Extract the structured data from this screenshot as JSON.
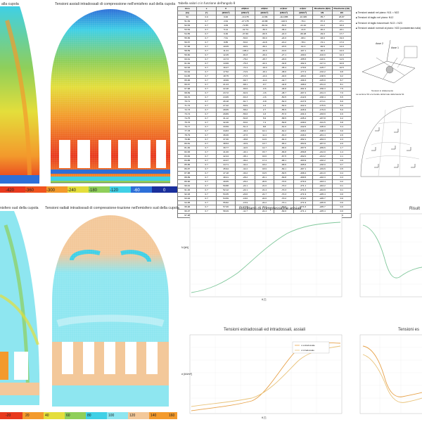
{
  "panels": {
    "tl_title": "alla cupola",
    "tm_title": "Tensioni assiali intradossali di compressione nell'emisfero sud della cupola",
    "bl_title": "nisfero sud della cupola",
    "bm_title": "Tensioni radiali intradossali di compressione-trazione nell'emisfero sud della cupola",
    "graph1_title": "Risultanti di compressione assiali",
    "graph2_title": "Risult",
    "graph3_title": "Tensioni estradossali ed intradossali, assiali",
    "graph4_title": "Tensioni es"
  },
  "legend_top": [
    "-420",
    "-360",
    "-300",
    "-240",
    "-180",
    "-120",
    "-60",
    "0"
  ],
  "legend_bottom_left": [
    "-20"
  ],
  "legend_bottom": [
    "20",
    "40",
    "60",
    "80",
    "100",
    "120",
    "140",
    "160"
  ],
  "table": {
    "title": "Tabella valori σ in funzione dell'angolo θ",
    "headers": [
      "Arco",
      "x",
      "θ",
      "σθ|Estr",
      "σθ|Intr",
      "σr|Estr",
      "σr|Intr",
      "Risultante (θ|Ω)",
      "Risultante (r|Ω)"
    ],
    "units": [
      "[m]",
      "[°]",
      "[kN/m²]",
      "[kN/m²]",
      "[kN/m²]",
      "[kN/m²]",
      "[kN/m²]",
      "kN",
      "kN"
    ],
    "rows": [
      [
        "50",
        "0.0",
        "0.00",
        "-13.475",
        "-13.86",
        "-114.885",
        "-10.495",
        "-55.7",
        "26.87"
      ],
      [
        "51-52",
        "0.7",
        "2.64",
        "-27.175",
        "-16.88",
        "-110.6",
        "-76.1",
        "-57.3",
        "27.1"
      ],
      [
        "52-53",
        "0.7",
        "4.09",
        "-72.85",
        "-69.31",
        "-53.6",
        "-21.10",
        "-41.2",
        "16.0"
      ],
      [
        "53-54",
        "0.7",
        "5.14",
        "-42.74",
        "-39.3",
        "-36.2",
        "-41.6",
        "-40.2",
        "22.1"
      ],
      [
        "54-55",
        "0.7",
        "6.36",
        "-37.60",
        "-60.5",
        "-22.3",
        "-66.48",
        "-49.0",
        "17.7"
      ],
      [
        "55-56",
        "0.7",
        "7.61",
        "-50.0",
        "-50.0",
        "-24.0",
        "-68.1",
        "-63.0",
        "19.0"
      ],
      [
        "56-57",
        "0.7",
        "8.85",
        "-53.0",
        "-44.8",
        "-16.2",
        "-78.1",
        "-72.1",
        "17.0"
      ],
      [
        "57-58",
        "0.7",
        "10.05",
        "-99.9",
        "-39.1",
        "-15.5",
        "-91.3",
        "-84.6",
        "14.0"
      ],
      [
        "58-59",
        "0.7",
        "11.24",
        "-106.2",
        "-33.3",
        "-19.0",
        "-107.1",
        "-92.0",
        "12.0"
      ],
      [
        "59-60",
        "0.7",
        "12.45",
        "-81.8",
        "-29.4",
        "-27.1",
        "-160.0",
        "-102.0",
        "12.3"
      ],
      [
        "60-61",
        "0.7",
        "13.73",
        "-78.2",
        "-25.7",
        "-29.9",
        "-155.5",
        "-110.1",
        "11.6"
      ],
      [
        "61-62",
        "0.7",
        "14.99",
        "-76.3",
        "-22.1",
        "-32.8",
        "-162.4",
        "-117.4",
        "10.8"
      ],
      [
        "62-63",
        "0.7",
        "16.27",
        "-74.4",
        "-19.0",
        "-35.4",
        "-170.6",
        "-125.7",
        "10.5"
      ],
      [
        "63-64",
        "0.7",
        "17.52",
        "-72.9",
        "-16.1",
        "-38.0",
        "-177.2",
        "-132.2",
        "9.8"
      ],
      [
        "64-65",
        "0.7",
        "18.75",
        "-71.5",
        "-13.4",
        "-40.6",
        "-184.0",
        "-138.6",
        "9.2"
      ],
      [
        "65-66",
        "0.7",
        "19.99",
        "-69.7",
        "-11.0",
        "-42.7",
        "-190.3",
        "-145.0",
        "8.7"
      ],
      [
        "66-67",
        "0.7",
        "21.23",
        "-68.1",
        "-8.7",
        "-44.8",
        "-196.0",
        "-151.0",
        "8.1"
      ],
      [
        "67-68",
        "0.7",
        "22.48",
        "-66.6",
        "-6.6",
        "-46.8",
        "-201.9",
        "-156.3",
        "7.5"
      ],
      [
        "68-69",
        "0.7",
        "23.72",
        "-64.9",
        "-4.6",
        "-48.7",
        "-207.2",
        "-161.3",
        "7.0"
      ],
      [
        "69-70",
        "0.7",
        "24.95",
        "-63.3",
        "-2.6",
        "-50.5",
        "-212.6",
        "-166.4",
        "6.5"
      ],
      [
        "70-71",
        "0.7",
        "26.18",
        "-61.7",
        "-0.8",
        "-52.3",
        "-217.6",
        "-171.1",
        "6.0"
      ],
      [
        "71-72",
        "0.7",
        "27.42",
        "-59.9",
        "1.0",
        "-54.0",
        "-222.4",
        "-175.6",
        "5.5"
      ],
      [
        "72-73",
        "0.7",
        "28.65",
        "-58.2",
        "2.7",
        "-55.5",
        "-226.9",
        "-179.9",
        "5.0"
      ],
      [
        "73-74",
        "0.7",
        "29.89",
        "-56.6",
        "4.3",
        "-57.0",
        "-231.0",
        "-183.9",
        "4.6"
      ],
      [
        "74-75",
        "0.7",
        "31.12",
        "-54.8",
        "5.9",
        "-58.5",
        "-235.2",
        "-187.8",
        "4.2"
      ],
      [
        "75-76",
        "0.7",
        "32.36",
        "-53.0",
        "7.4",
        "-59.8",
        "-239.0",
        "-191.5",
        "3.8"
      ],
      [
        "76-77",
        "0.7",
        "33.59",
        "-51.3",
        "8.8",
        "-61.0",
        "-242.6",
        "-195.0",
        "3.4"
      ],
      [
        "77-78",
        "0.7",
        "34.83",
        "-49.4",
        "10.1",
        "-62.2",
        "-246.0",
        "-198.3",
        "3.0"
      ],
      [
        "78-79",
        "0.7",
        "36.06",
        "-47.6",
        "11.4",
        "-63.3",
        "-249.2",
        "-201.4",
        "2.6"
      ],
      [
        "79-80",
        "0.7",
        "37.30",
        "-45.8",
        "12.6",
        "-64.3",
        "-252.1",
        "-204.3",
        "2.3"
      ],
      [
        "80-81",
        "0.7",
        "38.53",
        "-43.9",
        "13.7",
        "-65.2",
        "-254.9",
        "-207.0",
        "2.0"
      ],
      [
        "81-82",
        "0.7",
        "39.77",
        "-42.0",
        "14.7",
        "-66.0",
        "-257.5",
        "-209.6",
        "1.7"
      ],
      [
        "82-83",
        "0.7",
        "41.00",
        "-40.1",
        "15.7",
        "-66.8",
        "-259.8",
        "-212.0",
        "1.4"
      ],
      [
        "83-84",
        "0.7",
        "42.24",
        "-38.1",
        "16.6",
        "-67.5",
        "-262.0",
        "-214.2",
        "1.1"
      ],
      [
        "84-85",
        "0.7",
        "43.47",
        "-36.2",
        "17.4",
        "-68.1",
        "-263.9",
        "-216.2",
        "0.9"
      ],
      [
        "85-86",
        "0.7",
        "44.71",
        "-34.2",
        "18.2",
        "-68.6",
        "-265.6",
        "-218.0",
        "0.7"
      ],
      [
        "86-87",
        "0.7",
        "45.94",
        "-32.2",
        "18.9",
        "-69.1",
        "-267.1",
        "-219.6",
        "0.5"
      ],
      [
        "87-88",
        "0.7",
        "47.18",
        "-30.2",
        "19.5",
        "-69.5",
        "-268.4",
        "-221.0",
        "0.4"
      ],
      [
        "88-89",
        "0.7",
        "48.41",
        "-28.2",
        "20.1",
        "-69.8",
        "-269.5",
        "-222.3",
        "0.3"
      ],
      [
        "89-90",
        "0.7",
        "49.65",
        "-26.2",
        "20.6",
        "-70.0",
        "-270.4",
        "-223.4",
        "0.2"
      ],
      [
        "90-91",
        "0.7",
        "50.88",
        "-24.1",
        "21.0",
        "-70.2",
        "-271.1",
        "-224.2",
        "0.1"
      ],
      [
        "91-92",
        "0.7",
        "52.12",
        "-22.1",
        "21.4",
        "-70.3",
        "-271.6",
        "-224.9",
        "0.1"
      ],
      [
        "92-93",
        "0.7",
        "53.35",
        "-20.0",
        "21.7",
        "-70.3",
        "-271.9",
        "-225.4",
        "0.0"
      ],
      [
        "93-94",
        "0.7",
        "54.59",
        "-18.0",
        "22.0",
        "-70.2",
        "-272.0",
        "-225.7",
        "0.0"
      ],
      [
        "94-95",
        "0.7",
        "55.82",
        "-15.9",
        "22.2",
        "-70.1",
        "-271.9",
        "-225.8",
        "0.0"
      ],
      [
        "95-96",
        "0.7",
        "57.06",
        "-13.8",
        "22.3",
        "-69.9",
        "-271.6",
        "-225.7",
        "0.0"
      ],
      [
        "96-97",
        "0.7",
        "58.29",
        "-11.7",
        "22.4",
        "-69.6",
        "-271.1",
        "-225.4",
        "0.0"
      ],
      [
        "97-98",
        "0.7",
        "59.53",
        "-9.6",
        "22.4",
        "-69.3",
        "-270.4",
        "-224.9",
        "0.0"
      ]
    ]
  },
  "bullets": [
    "Tensioni assiali nel piano: N11 = N22",
    "Tensioni di taglio nel piano: N12",
    "Tensioni di taglio trasversali: N13 = N23",
    "Tensioni assiali normali al piano: N33 (considerata nulla)"
  ],
  "diagram_labels": {
    "axis1": "Asse 1",
    "axis2": "Asse 2",
    "note": "La sezione S3 e le bande deformate della fascia S1",
    "caption": "Tensioni in sfalsamento"
  },
  "graph_labels": {
    "g1_ylabel": "N [kN]",
    "g1_xlabel": "θ [°]",
    "g3_ylabel": "σ [kN/m²]",
    "g3_xlabel": "θ [°]",
    "g3_legend": [
      "σ estradossale",
      "σ intradossale"
    ]
  },
  "colors": {
    "red": "#e8391e",
    "orange": "#f39a2c",
    "yellow": "#e4de3b",
    "green": "#8fcf5a",
    "cyan": "#3fd0e6",
    "lightcyan": "#8ee6f0",
    "blue": "#2d6fd8",
    "navy": "#1a2f9c",
    "peach": "#f3c89a",
    "grid": "#d9d9d9",
    "curve_green": "#7fc79a",
    "curve_orange": "#e7a24a",
    "curve_peach": "#e9c37a"
  }
}
